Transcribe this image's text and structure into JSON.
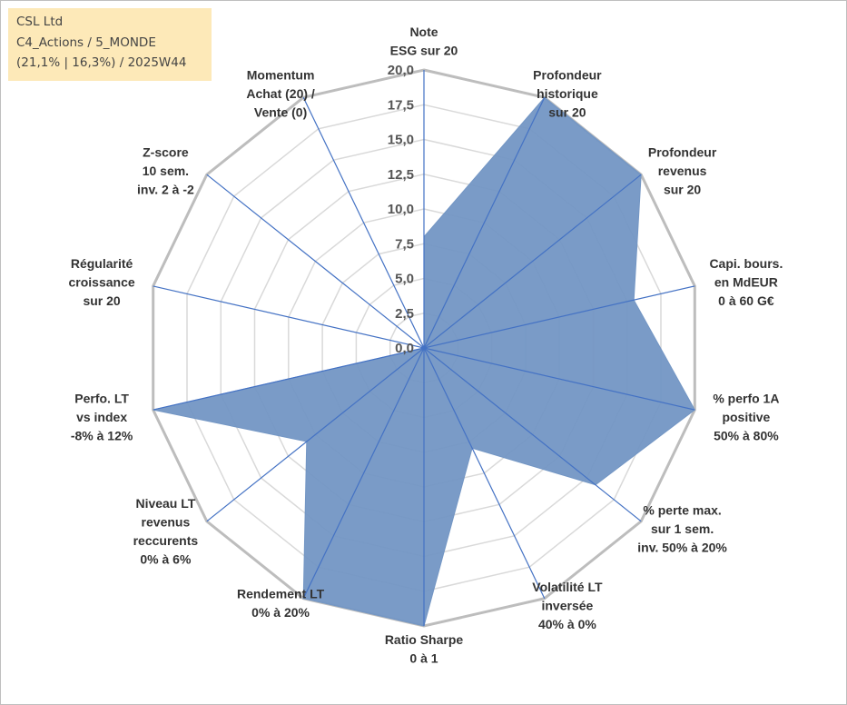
{
  "info": {
    "company": "CSL Ltd",
    "portfolio": "C4_Actions / 5_MONDE",
    "stats": "(21,1% | 16,3%) / 2025W44"
  },
  "colors": {
    "fill": "#7396c4",
    "stroke": "#4472c4",
    "grid": "#c8c8c8",
    "infobox": "#fde9b8"
  },
  "chart_data": {
    "type": "radar",
    "title": "CSL Ltd",
    "rmin": 0,
    "rmax": 20,
    "tick_step": 2.5,
    "tick_labels": [
      "0,0",
      "2,5",
      "5,0",
      "7,5",
      "10,0",
      "12,5",
      "15,0",
      "17,5",
      "20,0"
    ],
    "axes": [
      {
        "label": [
          "Note",
          "ESG sur 20"
        ],
        "value": 8.0
      },
      {
        "label": [
          "Profondeur",
          "historique",
          "sur 20"
        ],
        "value": 20.0
      },
      {
        "label": [
          "Profondeur",
          "revenus",
          "sur 20"
        ],
        "value": 20.0
      },
      {
        "label": [
          "Capi. bours.",
          "en MdEUR",
          "0 à 60 G€"
        ],
        "value": 15.5
      },
      {
        "label": [
          "% perfo 1A",
          "positive",
          "50% à 80%"
        ],
        "value": 20.0
      },
      {
        "label": [
          "% perte max.",
          "sur 1 sem.",
          "inv. 50% à 20%"
        ],
        "value": 15.8
      },
      {
        "label": [
          "Volatilité LT",
          "inversée",
          "40% à 0%"
        ],
        "value": 8.0
      },
      {
        "label": [
          "Ratio Sharpe",
          "0 à 1"
        ],
        "value": 20.0
      },
      {
        "label": [
          "Rendement LT",
          "0% à 20%"
        ],
        "value": 20.0
      },
      {
        "label": [
          "Niveau LT",
          "revenus",
          "reccurents",
          "0% à 6%"
        ],
        "value": 10.8
      },
      {
        "label": [
          "Perfo. LT",
          "vs index",
          "-8% à 12%"
        ],
        "value": 20.0
      },
      {
        "label": [
          "Régularité",
          "croissance",
          "sur 20"
        ],
        "value": 0.0
      },
      {
        "label": [
          "Z-score",
          "10 sem.",
          "inv. 2 à -2"
        ],
        "value": 0.0
      },
      {
        "label": [
          "Momentum",
          "Achat (20) /",
          "Vente (0)"
        ],
        "value": 0.0
      }
    ]
  }
}
